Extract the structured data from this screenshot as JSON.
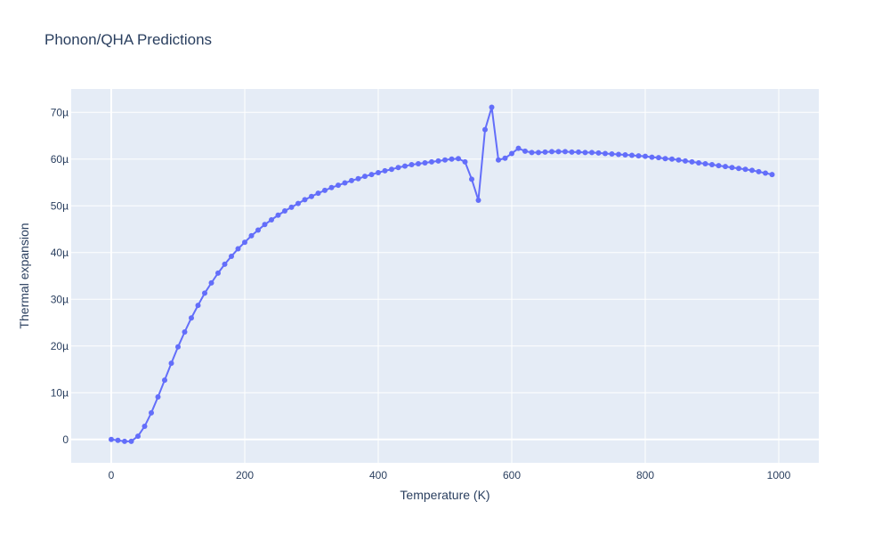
{
  "chart_data": {
    "type": "line",
    "title": "Phonon/QHA Predictions",
    "xlabel": "Temperature (K)",
    "ylabel": "Thermal expansion",
    "xlim": [
      -60,
      1060
    ],
    "ylim": [
      -5e-06,
      7.5e-05
    ],
    "x_ticks": [
      0,
      200,
      400,
      600,
      800,
      1000
    ],
    "x_tick_labels": [
      "0",
      "200",
      "400",
      "600",
      "800",
      "1000"
    ],
    "y_ticks": [
      0,
      1e-05,
      2e-05,
      3e-05,
      4e-05,
      5e-05,
      6e-05,
      7e-05
    ],
    "y_tick_labels": [
      "0",
      "10µ",
      "20µ",
      "30µ",
      "40µ",
      "50µ",
      "60µ",
      "70µ"
    ],
    "grid": true,
    "markers": true,
    "series": [
      {
        "color": "#636efa",
        "x": [
          0,
          10,
          20,
          30,
          40,
          50,
          60,
          70,
          80,
          90,
          100,
          110,
          120,
          130,
          140,
          150,
          160,
          170,
          180,
          190,
          200,
          210,
          220,
          230,
          240,
          250,
          260,
          270,
          280,
          290,
          300,
          310,
          320,
          330,
          340,
          350,
          360,
          370,
          380,
          390,
          400,
          410,
          420,
          430,
          440,
          450,
          460,
          470,
          480,
          490,
          500,
          510,
          520,
          530,
          540,
          550,
          560,
          570,
          580,
          590,
          600,
          610,
          620,
          630,
          640,
          650,
          660,
          670,
          680,
          690,
          700,
          710,
          720,
          730,
          740,
          750,
          760,
          770,
          780,
          790,
          800,
          810,
          820,
          830,
          840,
          850,
          860,
          870,
          880,
          890,
          900,
          910,
          920,
          930,
          940,
          950,
          960,
          970,
          980,
          990
        ],
        "y": [
          0.0,
          -2e-07,
          -4e-07,
          -4e-07,
          7e-07,
          2.8e-06,
          5.7e-06,
          9.1e-06,
          1.27e-05,
          1.63e-05,
          1.98e-05,
          2.3e-05,
          2.6e-05,
          2.87e-05,
          3.13e-05,
          3.35e-05,
          3.56e-05,
          3.75e-05,
          3.92e-05,
          4.08e-05,
          4.22e-05,
          4.36e-05,
          4.48e-05,
          4.6e-05,
          4.7e-05,
          4.8e-05,
          4.89e-05,
          4.97e-05,
          5.05e-05,
          5.13e-05,
          5.2e-05,
          5.27e-05,
          5.33e-05,
          5.39e-05,
          5.44e-05,
          5.49e-05,
          5.54e-05,
          5.58e-05,
          5.63e-05,
          5.67e-05,
          5.71e-05,
          5.75e-05,
          5.78e-05,
          5.82e-05,
          5.85e-05,
          5.88e-05,
          5.9e-05,
          5.92e-05,
          5.94e-05,
          5.96e-05,
          5.98e-05,
          6e-05,
          6.01e-05,
          5.94e-05,
          5.57e-05,
          5.12e-05,
          6.63e-05,
          7.11e-05,
          5.98e-05,
          6.02e-05,
          6.12e-05,
          6.23e-05,
          6.17e-05,
          6.14e-05,
          6.14e-05,
          6.15e-05,
          6.16e-05,
          6.16e-05,
          6.16e-05,
          6.15e-05,
          6.15e-05,
          6.14e-05,
          6.14e-05,
          6.13e-05,
          6.12e-05,
          6.11e-05,
          6.1e-05,
          6.09e-05,
          6.08e-05,
          6.07e-05,
          6.06e-05,
          6.04e-05,
          6.03e-05,
          6.01e-05,
          6e-05,
          5.98e-05,
          5.96e-05,
          5.94e-05,
          5.92e-05,
          5.9e-05,
          5.88e-05,
          5.86e-05,
          5.84e-05,
          5.82e-05,
          5.8e-05,
          5.78e-05,
          5.76e-05,
          5.73e-05,
          5.7e-05,
          5.67e-05
        ]
      }
    ]
  },
  "colors": {
    "plot_background": "#e5ecf6",
    "grid": "#ffffff",
    "text": "#2a3f5f",
    "series": "#636efa"
  }
}
